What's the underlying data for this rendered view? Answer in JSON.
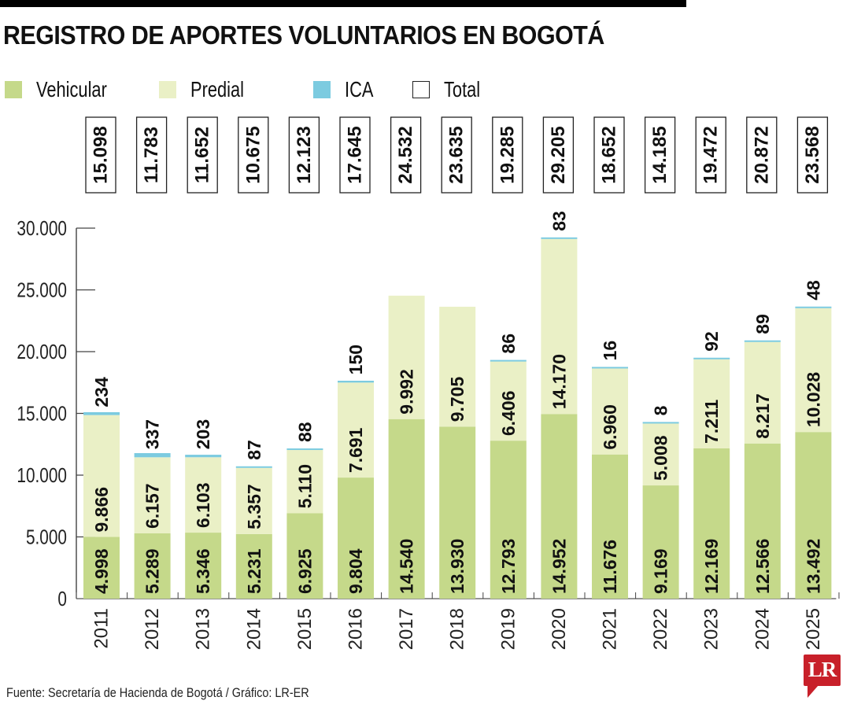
{
  "chart_data": {
    "type": "bar",
    "stacked": true,
    "title": "REGISTRO DE APORTES VOLUNTARIOS EN BOGOTÁ",
    "xlabel": "",
    "ylabel": "",
    "ylim": [
      0,
      30000
    ],
    "yticks": [
      0,
      5000,
      10000,
      15000,
      20000,
      25000,
      30000
    ],
    "ytick_labels": [
      "0",
      "5.000",
      "10.000",
      "15.000",
      "20.000",
      "25.000",
      "30.000"
    ],
    "categories": [
      "2011",
      "2012",
      "2013",
      "2014",
      "2015",
      "2016",
      "2017",
      "2018",
      "2019",
      "2020",
      "2021",
      "2022",
      "2023",
      "2024",
      "2025"
    ],
    "series": [
      {
        "name": "Vehicular",
        "color": "#c5d98a",
        "values": [
          4998,
          5289,
          5346,
          5231,
          6925,
          9804,
          14540,
          13930,
          12793,
          14952,
          11676,
          9169,
          12169,
          12566,
          13492
        ],
        "labels": [
          "4.998",
          "5.289",
          "5.346",
          "5.231",
          "6.925",
          "9.804",
          "14.540",
          "13.930",
          "12.793",
          "14.952",
          "11.676",
          "9.169",
          "12.169",
          "12.566",
          "13.492"
        ]
      },
      {
        "name": "Predial",
        "color": "#eaf0c6",
        "values": [
          9866,
          6157,
          6103,
          5357,
          5110,
          7691,
          9992,
          9705,
          6406,
          14170,
          6960,
          5008,
          7211,
          8217,
          10028
        ],
        "labels": [
          "9.866",
          "6.157",
          "6.103",
          "5.357",
          "5.110",
          "7.691",
          "9.992",
          "9.705",
          "6.406",
          "14.170",
          "6.960",
          "5.008",
          "7.211",
          "8.217",
          "10.028"
        ]
      },
      {
        "name": "ICA",
        "color": "#7ccbe0",
        "values": [
          234,
          337,
          203,
          87,
          88,
          150,
          0,
          0,
          86,
          83,
          16,
          8,
          92,
          89,
          48
        ],
        "labels": [
          "234",
          "337",
          "203",
          "87",
          "88",
          "150",
          "",
          "",
          "86",
          "83",
          "16",
          "8",
          "92",
          "89",
          "48"
        ]
      }
    ],
    "totals": {
      "name": "Total",
      "values": [
        15098,
        11783,
        11652,
        10675,
        12123,
        17645,
        24532,
        23635,
        19285,
        29205,
        18652,
        14185,
        19472,
        20872,
        23568
      ],
      "labels": [
        "15.098",
        "11.783",
        "11.652",
        "10.675",
        "12.123",
        "17.645",
        "24.532",
        "23.635",
        "19.285",
        "29.205",
        "18.652",
        "14.185",
        "19.472",
        "20.872",
        "23.568"
      ]
    },
    "legend": {
      "placement": "top-left",
      "entries": [
        "Vehicular",
        "Predial",
        "ICA",
        "Total"
      ]
    },
    "grid": false
  },
  "header": {
    "title": "REGISTRO DE APORTES VOLUNTARIOS EN BOGOTÁ"
  },
  "legend": {
    "vehicular": "Vehicular",
    "predial": "Predial",
    "ica": "ICA",
    "total": "Total"
  },
  "colors": {
    "vehicular": "#c5d98a",
    "predial": "#eaf0c6",
    "ica": "#7ccbe0",
    "total_box": "#ffffff",
    "logo": "#c8202a"
  },
  "footer": {
    "source": "Fuente: Secretaría de Hacienda de Bogotá / Gráfico: LR-ER"
  },
  "logo": {
    "text": "LR"
  }
}
